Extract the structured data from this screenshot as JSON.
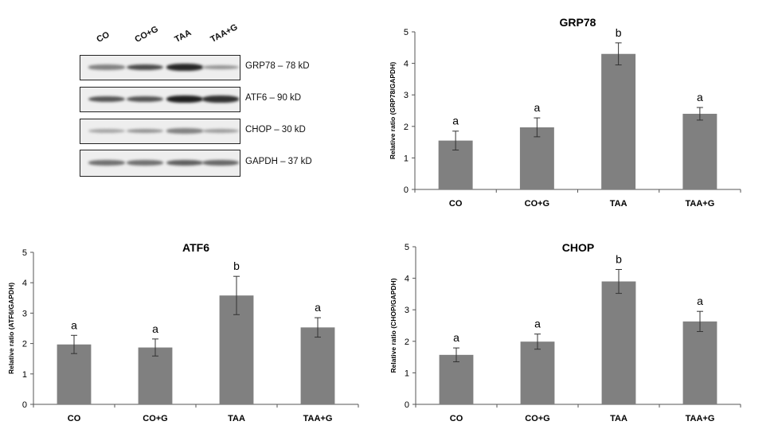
{
  "blot": {
    "lanes": [
      "CO",
      "CO+G",
      "TAA",
      "TAA+G"
    ],
    "rows": [
      {
        "label": "GRP78 – 78 kD",
        "intensity": [
          0.45,
          0.75,
          0.95,
          0.35
        ]
      },
      {
        "label": "ATF6 – 90 kD",
        "intensity": [
          0.7,
          0.7,
          1.0,
          0.9
        ]
      },
      {
        "label": "CHOP – 30 kD",
        "intensity": [
          0.25,
          0.35,
          0.45,
          0.3
        ]
      },
      {
        "label": "GAPDH – 37 kD",
        "intensity": [
          0.55,
          0.55,
          0.65,
          0.6
        ]
      }
    ]
  },
  "chart_data": [
    {
      "id": "grp78",
      "type": "bar",
      "title": "GRP78",
      "ylabel": "Relative ratio (GRP78/GAPDH)",
      "categories": [
        "CO",
        "CO+G",
        "TAA",
        "TAA+G"
      ],
      "values": [
        1.55,
        1.97,
        4.3,
        2.4
      ],
      "errors": [
        0.3,
        0.3,
        0.35,
        0.2
      ],
      "letters": [
        "a",
        "a",
        "b",
        "a"
      ],
      "ylim": [
        0,
        5
      ],
      "yticks": [
        "0",
        "1",
        "2",
        "3",
        "4",
        "5"
      ],
      "bar_color": "#808080",
      "grid": false
    },
    {
      "id": "atf6",
      "type": "bar",
      "title": "ATF6",
      "ylabel": "Relative ratio (ATF6/GAPDH)",
      "categories": [
        "CO",
        "CO+G",
        "TAA",
        "TAA+G"
      ],
      "values": [
        1.97,
        1.87,
        3.58,
        2.53
      ],
      "errors": [
        0.3,
        0.28,
        0.63,
        0.32
      ],
      "letters": [
        "a",
        "a",
        "b",
        "a"
      ],
      "ylim": [
        0,
        5
      ],
      "yticks": [
        "0",
        "1",
        "2",
        "3",
        "4",
        "5"
      ],
      "bar_color": "#808080",
      "grid": false
    },
    {
      "id": "chop",
      "type": "bar",
      "title": "CHOP",
      "ylabel": "Relative ratio (CHOP/GAPDH)",
      "categories": [
        "CO",
        "CO+G",
        "TAA",
        "TAA+G"
      ],
      "values": [
        1.57,
        1.99,
        3.9,
        2.63
      ],
      "errors": [
        0.22,
        0.24,
        0.38,
        0.32
      ],
      "letters": [
        "a",
        "a",
        "b",
        "a"
      ],
      "ylim": [
        0,
        5
      ],
      "yticks": [
        "0",
        "1",
        "2",
        "3",
        "4",
        "5"
      ],
      "bar_color": "#808080",
      "grid": false
    }
  ]
}
